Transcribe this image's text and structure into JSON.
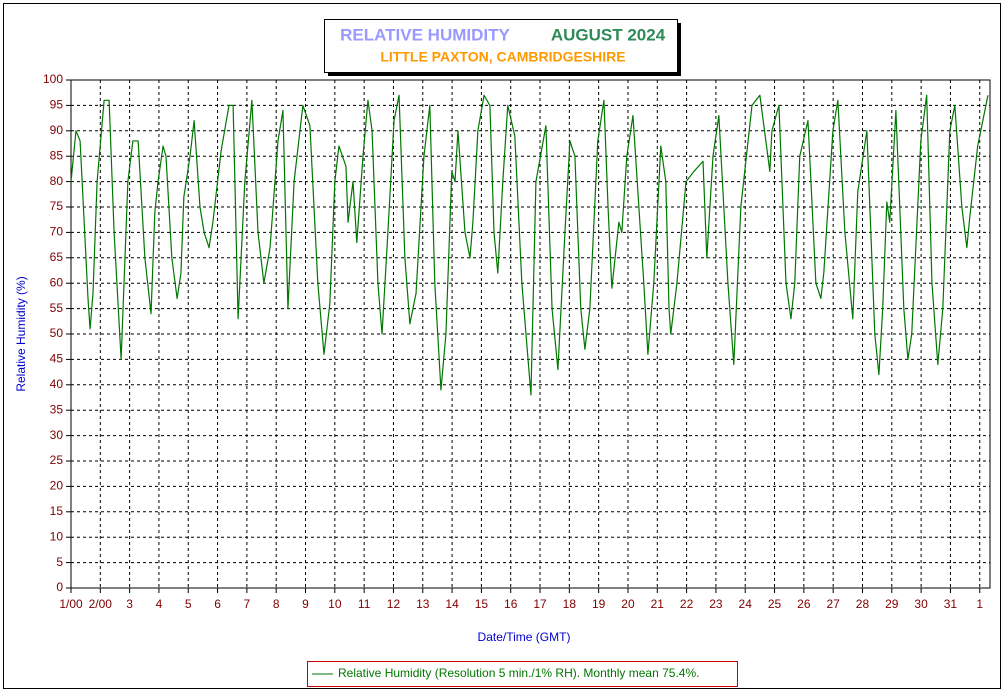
{
  "chart_data": {
    "type": "line",
    "title": "RELATIVE HUMIDITY",
    "title_period": "AUGUST 2024",
    "subtitle": "LITTLE PAXTON, CAMBRIDGESHIRE",
    "x_label": "Date/Time (GMT)",
    "y_label": "Relative Humidity (%)",
    "xlim": [
      0,
      31.35
    ],
    "ylim": [
      0,
      100
    ],
    "grid": true,
    "xticks": [
      {
        "value": 0,
        "label": "1/00"
      },
      {
        "value": 1,
        "label": "2/00"
      },
      {
        "value": 2,
        "label": "3"
      },
      {
        "value": 3,
        "label": "4"
      },
      {
        "value": 4,
        "label": "5"
      },
      {
        "value": 5,
        "label": "6"
      },
      {
        "value": 6,
        "label": "7"
      },
      {
        "value": 7,
        "label": "8"
      },
      {
        "value": 8,
        "label": "9"
      },
      {
        "value": 9,
        "label": "10"
      },
      {
        "value": 10,
        "label": "11"
      },
      {
        "value": 11,
        "label": "12"
      },
      {
        "value": 12,
        "label": "13"
      },
      {
        "value": 13,
        "label": "14"
      },
      {
        "value": 14,
        "label": "15"
      },
      {
        "value": 15,
        "label": "16"
      },
      {
        "value": 16,
        "label": "17"
      },
      {
        "value": 17,
        "label": "18"
      },
      {
        "value": 18,
        "label": "19"
      },
      {
        "value": 19,
        "label": "20"
      },
      {
        "value": 20,
        "label": "21"
      },
      {
        "value": 21,
        "label": "22"
      },
      {
        "value": 22,
        "label": "23"
      },
      {
        "value": 23,
        "label": "24"
      },
      {
        "value": 24,
        "label": "25"
      },
      {
        "value": 25,
        "label": "26"
      },
      {
        "value": 26,
        "label": "27"
      },
      {
        "value": 27,
        "label": "28"
      },
      {
        "value": 28,
        "label": "29"
      },
      {
        "value": 29,
        "label": "30"
      },
      {
        "value": 30,
        "label": "31"
      },
      {
        "value": 31,
        "label": "1"
      }
    ],
    "yticks": [
      0,
      5,
      10,
      15,
      20,
      25,
      30,
      35,
      40,
      45,
      50,
      55,
      60,
      65,
      70,
      75,
      80,
      85,
      90,
      95,
      100
    ],
    "x": [
      0,
      0.17,
      0.31,
      0.58,
      0.65,
      0.75,
      0.89,
      1.13,
      1.3,
      1.47,
      1.71,
      1.94,
      2.11,
      2.29,
      2.52,
      2.73,
      2.86,
      2.97,
      3.14,
      3.24,
      3.44,
      3.62,
      3.75,
      3.85,
      4.06,
      4.2,
      4.4,
      4.54,
      4.71,
      4.84,
      5.12,
      5.39,
      5.53,
      5.7,
      5.93,
      6.17,
      6.38,
      6.58,
      6.79,
      7.06,
      7.23,
      7.4,
      7.61,
      7.91,
      8.15,
      8.42,
      8.63,
      8.83,
      9.0,
      9.14,
      9.38,
      9.45,
      9.62,
      9.75,
      9.96,
      10.13,
      10.27,
      10.47,
      10.61,
      10.81,
      11.02,
      11.19,
      11.39,
      11.56,
      11.77,
      12.04,
      12.24,
      12.41,
      12.62,
      12.79,
      12.99,
      13.1,
      13.2,
      13.44,
      13.61,
      13.71,
      13.88,
      14.09,
      14.29,
      14.43,
      14.56,
      14.73,
      14.9,
      15.14,
      15.38,
      15.69,
      15.86,
      16.2,
      16.41,
      16.61,
      16.85,
      17.02,
      17.19,
      17.39,
      17.53,
      17.7,
      17.97,
      18.18,
      18.32,
      18.45,
      18.69,
      18.79,
      18.96,
      19.17,
      19.54,
      19.68,
      19.88,
      20.12,
      20.29,
      20.4,
      20.46,
      20.67,
      20.98,
      21.25,
      21.56,
      21.69,
      21.9,
      22.1,
      22.41,
      22.61,
      22.85,
      23.23,
      23.5,
      23.84,
      23.91,
      24.15,
      24.39,
      24.56,
      24.69,
      24.86,
      25.14,
      25.41,
      25.58,
      25.68,
      25.99,
      26.16,
      26.4,
      26.67,
      26.84,
      27.15,
      27.42,
      27.56,
      27.69,
      27.83,
      27.93,
      28.14,
      28.41,
      28.55,
      28.68,
      28.99,
      29.19,
      29.37,
      29.57,
      29.74,
      29.98,
      30.15,
      30.39,
      30.56,
      30.66,
      30.93,
      31.28
    ],
    "series": [
      {
        "name": "Relative Humidity (Resolution 5 min./1% RH). Monthly mean 75.4%.",
        "color": "#007700",
        "values": [
          80,
          90,
          88,
          57,
          51,
          58,
          80,
          96,
          96,
          70,
          45,
          80,
          88,
          88,
          65,
          54,
          74,
          80,
          87,
          85,
          65,
          57,
          62,
          77,
          85,
          92,
          75,
          70,
          67,
          72,
          86,
          95,
          95,
          53,
          80,
          96,
          70,
          60,
          67,
          88,
          94,
          55,
          80,
          95,
          91,
          60,
          46,
          56,
          80,
          87,
          83,
          72,
          80,
          68,
          85,
          96,
          90,
          60,
          50,
          70,
          92,
          97,
          65,
          52,
          58,
          85,
          95,
          60,
          39,
          50,
          82,
          80,
          90,
          70,
          65,
          72,
          90,
          97,
          95,
          70,
          62,
          80,
          95,
          89,
          60,
          38,
          80,
          91,
          55,
          43,
          70,
          88,
          85,
          55,
          47,
          55,
          88,
          96,
          75,
          59,
          72,
          70,
          85,
          93,
          60,
          46,
          60,
          87,
          80,
          55,
          50,
          60,
          80,
          82,
          84,
          65,
          85,
          93,
          60,
          44,
          75,
          95,
          97,
          82,
          90,
          95,
          60,
          53,
          60,
          85,
          92,
          60,
          57,
          62,
          90,
          96,
          70,
          53,
          78,
          90,
          50,
          42,
          55,
          76,
          72,
          94,
          55,
          45,
          50,
          88,
          97,
          60,
          44,
          55,
          90,
          95,
          75,
          67,
          73,
          87,
          97
        ]
      }
    ]
  }
}
